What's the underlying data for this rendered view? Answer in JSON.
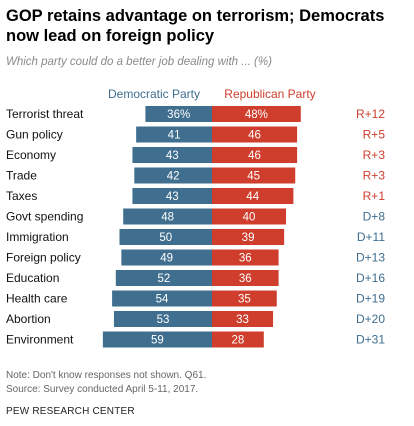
{
  "title": "GOP retains advantage on terrorism; Democrats now lead on foreign policy",
  "subtitle": "Which party could do a better job dealing with ... (%)",
  "note": "Note: Don't know responses not shown. Q61.",
  "source": "Source: Survey conducted April 5-11, 2017.",
  "org": "PEW RESEARCH CENTER",
  "colors": {
    "dem": "#3f6e8f",
    "rep": "#cf3e2c",
    "dem_text": "#3f6e8f",
    "rep_text": "#cf3e2c"
  },
  "chart_data": {
    "type": "bar",
    "orientation": "diverging-horizontal",
    "categories": [
      "Terrorist threat",
      "Gun policy",
      "Economy",
      "Trade",
      "Taxes",
      "Govt spending",
      "Immigration",
      "Foreign policy",
      "Education",
      "Health care",
      "Abortion",
      "Environment"
    ],
    "series": [
      {
        "name": "Democratic Party",
        "values": [
          36,
          41,
          43,
          42,
          43,
          48,
          50,
          49,
          52,
          54,
          53,
          59
        ],
        "labels": [
          "36%",
          "41",
          "43",
          "42",
          "43",
          "48",
          "50",
          "49",
          "52",
          "54",
          "53",
          "59"
        ]
      },
      {
        "name": "Republican Party",
        "values": [
          48,
          46,
          46,
          45,
          44,
          40,
          39,
          36,
          36,
          35,
          33,
          28
        ],
        "labels": [
          "48%",
          "46",
          "46",
          "45",
          "44",
          "40",
          "39",
          "36",
          "36",
          "35",
          "33",
          "28"
        ]
      }
    ],
    "advantage": [
      "R+12",
      "R+5",
      "R+3",
      "R+3",
      "R+1",
      "D+8",
      "D+11",
      "D+13",
      "D+16",
      "D+19",
      "D+20",
      "D+31"
    ],
    "legend_position": "top",
    "grid": false
  }
}
